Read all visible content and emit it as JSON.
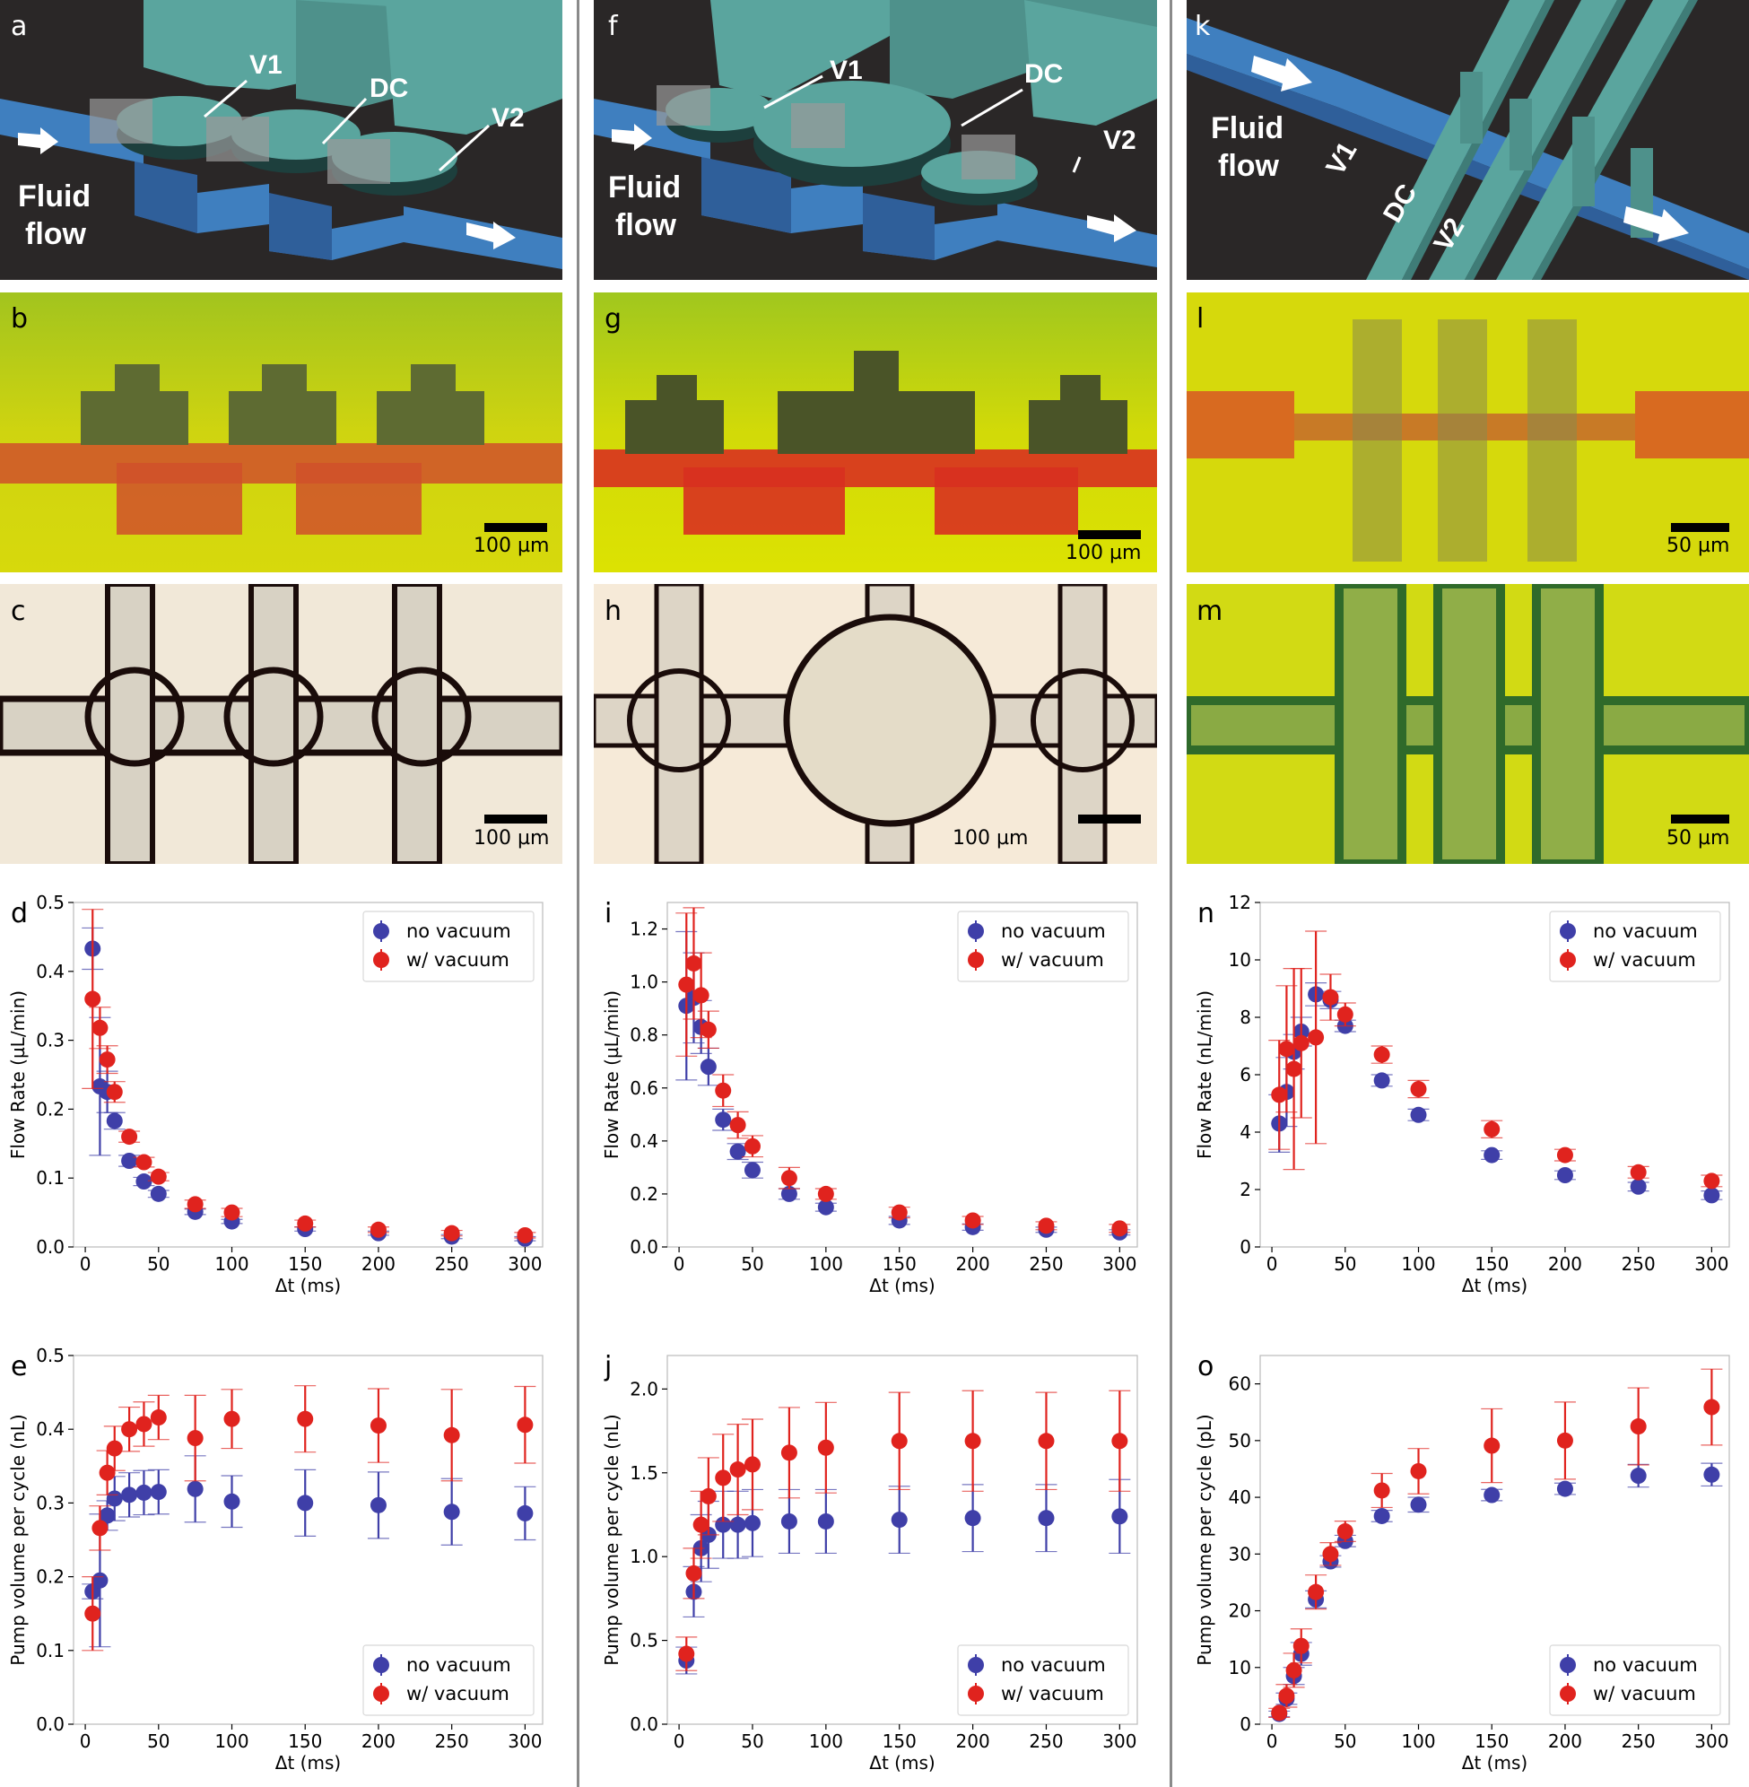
{
  "colors": {
    "no_vacuum": "#3f3fa8",
    "w_vacuum": "#e0231e",
    "channel_blue": "#3f7fbf",
    "valve_teal": "#5aa59e",
    "dark_bg": "#2a2727",
    "yellow_bg": "#d8dc10",
    "red_fill": "#d0402a"
  },
  "schematics": [
    {
      "letter": "a",
      "labels": [
        "V1",
        "DC",
        "V2"
      ],
      "fluid": [
        "Fluid",
        "flow"
      ]
    },
    {
      "letter": "f",
      "labels": [
        "V1",
        "DC",
        "V2"
      ],
      "fluid": [
        "Fluid",
        "flow"
      ]
    },
    {
      "letter": "k",
      "labels": [
        "V1",
        "DC",
        "V2"
      ],
      "fluid": [
        "Fluid",
        "flow"
      ]
    }
  ],
  "micrographs": [
    {
      "letter": "b",
      "scale": "100 µm"
    },
    {
      "letter": "g",
      "scale": "100 µm"
    },
    {
      "letter": "l",
      "scale": "50 µm"
    },
    {
      "letter": "c",
      "scale": "100 µm"
    },
    {
      "letter": "h",
      "scale": "100 µm"
    },
    {
      "letter": "m",
      "scale": "50 µm"
    }
  ],
  "chart_data": [
    {
      "letter": "d",
      "type": "scatter",
      "xlabel": "Δt (ms)",
      "ylabel": "Flow Rate (µL/min)",
      "xlim": [
        -8,
        312
      ],
      "ylim": [
        0,
        0.5
      ],
      "xticks": [
        0,
        50,
        100,
        150,
        200,
        250,
        300
      ],
      "xticklabels": [
        "0",
        "50",
        "100",
        "150",
        "200",
        "250",
        "300"
      ],
      "yticks": [
        0,
        0.1,
        0.2,
        0.3,
        0.4,
        0.5
      ],
      "yticklabels": [
        "0.0",
        "0.1",
        "0.2",
        "0.3",
        "0.4",
        "0.5"
      ],
      "legend": "top-right",
      "series": [
        {
          "name": "no vacuum",
          "color": "no_vacuum",
          "x": [
            5,
            10,
            15,
            20,
            30,
            40,
            50,
            75,
            100,
            150,
            200,
            250,
            300
          ],
          "y": [
            0.433,
            0.233,
            0.225,
            0.183,
            0.125,
            0.095,
            0.077,
            0.051,
            0.037,
            0.026,
            0.02,
            0.015,
            0.012
          ],
          "err": [
            0.03,
            0.1,
            0.03,
            0.012,
            0.008,
            0.006,
            0.005,
            0.004,
            0.003,
            0.003,
            0.003,
            0.003,
            0.003
          ]
        },
        {
          "name": "w/ vacuum",
          "color": "w_vacuum",
          "x": [
            5,
            10,
            15,
            20,
            30,
            40,
            50,
            75,
            100,
            150,
            200,
            250,
            300
          ],
          "y": [
            0.36,
            0.318,
            0.272,
            0.225,
            0.16,
            0.123,
            0.102,
            0.062,
            0.05,
            0.034,
            0.025,
            0.02,
            0.017
          ],
          "err": [
            0.13,
            0.03,
            0.02,
            0.015,
            0.008,
            0.007,
            0.006,
            0.006,
            0.006,
            0.005,
            0.004,
            0.004,
            0.004
          ]
        }
      ]
    },
    {
      "letter": "i",
      "type": "scatter",
      "xlabel": "Δt (ms)",
      "ylabel": "Flow Rate (µL/min)",
      "xlim": [
        -8,
        312
      ],
      "ylim": [
        0,
        1.3
      ],
      "xticks": [
        0,
        50,
        100,
        150,
        200,
        250,
        300
      ],
      "xticklabels": [
        "0",
        "50",
        "100",
        "150",
        "200",
        "250",
        "300"
      ],
      "yticks": [
        0,
        0.2,
        0.4,
        0.6,
        0.8,
        1.0,
        1.2
      ],
      "yticklabels": [
        "0.0",
        "0.2",
        "0.4",
        "0.6",
        "0.8",
        "1.0",
        "1.2"
      ],
      "legend": "top-right",
      "series": [
        {
          "name": "no vacuum",
          "color": "no_vacuum",
          "x": [
            5,
            10,
            15,
            20,
            30,
            40,
            50,
            75,
            100,
            150,
            200,
            250,
            300
          ],
          "y": [
            0.91,
            0.94,
            0.83,
            0.68,
            0.48,
            0.36,
            0.29,
            0.2,
            0.15,
            0.1,
            0.075,
            0.065,
            0.055
          ],
          "err": [
            0.28,
            0.17,
            0.1,
            0.07,
            0.04,
            0.03,
            0.03,
            0.02,
            0.015,
            0.015,
            0.012,
            0.01,
            0.01
          ]
        },
        {
          "name": "w/ vacuum",
          "color": "w_vacuum",
          "x": [
            5,
            10,
            15,
            20,
            30,
            40,
            50,
            75,
            100,
            150,
            200,
            250,
            300
          ],
          "y": [
            0.99,
            1.07,
            0.95,
            0.82,
            0.59,
            0.46,
            0.38,
            0.26,
            0.2,
            0.13,
            0.1,
            0.08,
            0.07
          ],
          "err": [
            0.27,
            0.21,
            0.16,
            0.07,
            0.06,
            0.05,
            0.04,
            0.04,
            0.02,
            0.02,
            0.015,
            0.015,
            0.015
          ]
        }
      ]
    },
    {
      "letter": "n",
      "type": "scatter",
      "xlabel": "Δt (ms)",
      "ylabel": "Flow Rate (nL/min)",
      "xlim": [
        -8,
        312
      ],
      "ylim": [
        0,
        12
      ],
      "xticks": [
        0,
        50,
        100,
        150,
        200,
        250,
        300
      ],
      "xticklabels": [
        "0",
        "50",
        "100",
        "150",
        "200",
        "250",
        "300"
      ],
      "yticks": [
        0,
        2,
        4,
        6,
        8,
        10,
        12
      ],
      "yticklabels": [
        "0",
        "2",
        "4",
        "6",
        "8",
        "10",
        "12"
      ],
      "legend": "top-right",
      "series": [
        {
          "name": "no vacuum",
          "color": "no_vacuum",
          "x": [
            5,
            10,
            15,
            20,
            30,
            40,
            50,
            75,
            100,
            150,
            200,
            250,
            300
          ],
          "y": [
            4.3,
            5.4,
            6.8,
            7.5,
            8.8,
            8.6,
            7.7,
            5.8,
            4.6,
            3.2,
            2.5,
            2.1,
            1.8
          ],
          "err": [
            1.0,
            1.2,
            0.6,
            0.5,
            0.4,
            0.3,
            0.2,
            0.2,
            0.2,
            0.15,
            0.15,
            0.15,
            0.15
          ]
        },
        {
          "name": "w/ vacuum",
          "color": "w_vacuum",
          "x": [
            5,
            10,
            15,
            20,
            30,
            40,
            50,
            75,
            100,
            150,
            200,
            250,
            300
          ],
          "y": [
            5.3,
            6.9,
            6.2,
            7.1,
            7.3,
            8.7,
            8.1,
            6.7,
            5.5,
            4.1,
            3.2,
            2.6,
            2.3
          ],
          "err": [
            1.9,
            2.2,
            3.5,
            2.6,
            3.7,
            0.8,
            0.4,
            0.3,
            0.3,
            0.3,
            0.2,
            0.2,
            0.2
          ]
        }
      ]
    },
    {
      "letter": "e",
      "type": "scatter",
      "xlabel": "Δt (ms)",
      "ylabel": "Pump volume per cycle (nL)",
      "xlim": [
        -8,
        312
      ],
      "ylim": [
        0,
        0.5
      ],
      "xticks": [
        0,
        50,
        100,
        150,
        200,
        250,
        300
      ],
      "xticklabels": [
        "0",
        "50",
        "100",
        "150",
        "200",
        "250",
        "300"
      ],
      "yticks": [
        0,
        0.1,
        0.2,
        0.3,
        0.4,
        0.5
      ],
      "yticklabels": [
        "0.0",
        "0.1",
        "0.2",
        "0.3",
        "0.4",
        "0.5"
      ],
      "legend": "bottom-right",
      "series": [
        {
          "name": "no vacuum",
          "color": "no_vacuum",
          "x": [
            5,
            10,
            15,
            20,
            30,
            40,
            50,
            75,
            100,
            150,
            200,
            250,
            300
          ],
          "y": [
            0.18,
            0.195,
            0.283,
            0.306,
            0.311,
            0.314,
            0.315,
            0.319,
            0.302,
            0.3,
            0.297,
            0.288,
            0.286
          ],
          "err": [
            0.01,
            0.09,
            0.02,
            0.03,
            0.03,
            0.03,
            0.03,
            0.045,
            0.035,
            0.045,
            0.045,
            0.045,
            0.036
          ]
        },
        {
          "name": "w/ vacuum",
          "color": "w_vacuum",
          "x": [
            5,
            10,
            15,
            20,
            30,
            40,
            50,
            75,
            100,
            150,
            200,
            250,
            300
          ],
          "y": [
            0.15,
            0.266,
            0.341,
            0.374,
            0.4,
            0.407,
            0.416,
            0.388,
            0.414,
            0.414,
            0.405,
            0.392,
            0.406
          ],
          "err": [
            0.05,
            0.03,
            0.03,
            0.03,
            0.03,
            0.03,
            0.03,
            0.058,
            0.04,
            0.045,
            0.05,
            0.062,
            0.052
          ]
        }
      ]
    },
    {
      "letter": "j",
      "type": "scatter",
      "xlabel": "Δt (ms)",
      "ylabel": "Pump volume per cycle (nL)",
      "xlim": [
        -8,
        312
      ],
      "ylim": [
        0,
        2.2
      ],
      "xticks": [
        0,
        50,
        100,
        150,
        200,
        250,
        300
      ],
      "xticklabels": [
        "0",
        "50",
        "100",
        "150",
        "200",
        "250",
        "300"
      ],
      "yticks": [
        0,
        0.5,
        1.0,
        1.5,
        2.0
      ],
      "yticklabels": [
        "0.0",
        "0.5",
        "1.0",
        "1.5",
        "2.0"
      ],
      "legend": "bottom-right",
      "series": [
        {
          "name": "no vacuum",
          "color": "no_vacuum",
          "x": [
            5,
            10,
            15,
            20,
            30,
            40,
            50,
            75,
            100,
            150,
            200,
            250,
            300
          ],
          "y": [
            0.38,
            0.79,
            1.05,
            1.13,
            1.19,
            1.19,
            1.2,
            1.21,
            1.21,
            1.22,
            1.23,
            1.23,
            1.24
          ],
          "err": [
            0.08,
            0.15,
            0.2,
            0.2,
            0.2,
            0.2,
            0.2,
            0.19,
            0.19,
            0.2,
            0.2,
            0.2,
            0.22
          ]
        },
        {
          "name": "w/ vacuum",
          "color": "w_vacuum",
          "x": [
            5,
            10,
            15,
            20,
            30,
            40,
            50,
            75,
            100,
            150,
            200,
            250,
            300
          ],
          "y": [
            0.42,
            0.9,
            1.19,
            1.36,
            1.47,
            1.52,
            1.55,
            1.62,
            1.65,
            1.69,
            1.69,
            1.69,
            1.69
          ],
          "err": [
            0.1,
            0.15,
            0.2,
            0.23,
            0.26,
            0.27,
            0.27,
            0.27,
            0.27,
            0.29,
            0.3,
            0.29,
            0.3
          ]
        }
      ]
    },
    {
      "letter": "o",
      "type": "scatter",
      "xlabel": "Δt (ms)",
      "ylabel": "Pump volume per cycle (pL)",
      "xlim": [
        -8,
        312
      ],
      "ylim": [
        0,
        65
      ],
      "xticks": [
        0,
        50,
        100,
        150,
        200,
        250,
        300
      ],
      "xticklabels": [
        "0",
        "50",
        "100",
        "150",
        "200",
        "250",
        "300"
      ],
      "yticks": [
        0,
        10,
        20,
        30,
        40,
        50,
        60
      ],
      "yticklabels": [
        "0",
        "10",
        "20",
        "30",
        "40",
        "50",
        "60"
      ],
      "legend": "bottom-right",
      "series": [
        {
          "name": "no vacuum",
          "color": "no_vacuum",
          "x": [
            5,
            10,
            15,
            20,
            30,
            40,
            50,
            75,
            100,
            150,
            200,
            250,
            300
          ],
          "y": [
            1.8,
            4.5,
            8.5,
            12.4,
            22.0,
            28.7,
            32.3,
            36.7,
            38.7,
            40.4,
            41.5,
            43.8,
            44.0
          ],
          "err": [
            0.5,
            1.0,
            1.5,
            2.0,
            1.5,
            1.0,
            1.0,
            1.0,
            1.3,
            1.0,
            1.0,
            2.0,
            2.0
          ]
        },
        {
          "name": "w/ vacuum",
          "color": "w_vacuum",
          "x": [
            5,
            10,
            15,
            20,
            30,
            40,
            50,
            75,
            100,
            150,
            200,
            250,
            300
          ],
          "y": [
            2.0,
            5.0,
            9.5,
            13.8,
            23.3,
            30.0,
            34.0,
            41.2,
            44.6,
            49.1,
            50.0,
            52.5,
            55.9
          ],
          "err": [
            0.8,
            2.0,
            3.0,
            3.0,
            3.0,
            2.0,
            1.8,
            3.0,
            4.0,
            6.5,
            6.8,
            6.8,
            6.7
          ]
        }
      ]
    }
  ]
}
